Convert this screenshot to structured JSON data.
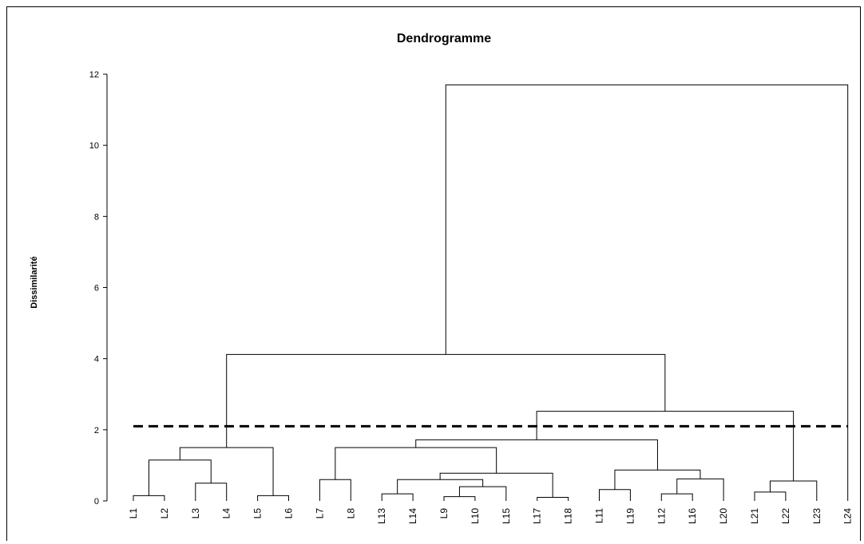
{
  "chart_data": {
    "type": "dendrogram",
    "title": "Dendrogramme",
    "ylabel": "Dissimilarité",
    "ylim": [
      0,
      12
    ],
    "yticks": [
      "0",
      "2",
      "4",
      "6",
      "8",
      "10",
      "12"
    ],
    "cut_line": 2.1,
    "leaves": [
      "L1",
      "L2",
      "L3",
      "L4",
      "L5",
      "L6",
      "L7",
      "L8",
      "L13",
      "L14",
      "L9",
      "L10",
      "L15",
      "L17",
      "L18",
      "L11",
      "L19",
      "L12",
      "L16",
      "L20",
      "L21",
      "L22",
      "L23",
      "L24"
    ],
    "merges": [
      {
        "a": "L1",
        "b": "L2",
        "height": 0.15,
        "id": "c1"
      },
      {
        "a": "L3",
        "b": "L4",
        "height": 0.5,
        "id": "c2"
      },
      {
        "a": "L5",
        "b": "L6",
        "height": 0.15,
        "id": "c3"
      },
      {
        "a": "c1",
        "b": "c2",
        "height": 1.15,
        "id": "c4"
      },
      {
        "a": "c4",
        "b": "c3",
        "height": 1.5,
        "id": "c5"
      },
      {
        "a": "L7",
        "b": "L8",
        "height": 0.6,
        "id": "c6"
      },
      {
        "a": "L13",
        "b": "L14",
        "height": 0.2,
        "id": "c7"
      },
      {
        "a": "L9",
        "b": "L10",
        "height": 0.12,
        "id": "c8"
      },
      {
        "a": "c8",
        "b": "L15",
        "height": 0.4,
        "id": "c9"
      },
      {
        "a": "c7",
        "b": "c9",
        "height": 0.6,
        "id": "c10"
      },
      {
        "a": "L17",
        "b": "L18",
        "height": 0.1,
        "id": "c11"
      },
      {
        "a": "c10",
        "b": "c11",
        "height": 0.78,
        "id": "c12"
      },
      {
        "a": "c6",
        "b": "c12",
        "height": 1.5,
        "id": "c13"
      },
      {
        "a": "L11",
        "b": "L19",
        "height": 0.32,
        "id": "c14"
      },
      {
        "a": "L12",
        "b": "L16",
        "height": 0.2,
        "id": "c15"
      },
      {
        "a": "c15",
        "b": "L20",
        "height": 0.62,
        "id": "c16"
      },
      {
        "a": "c14",
        "b": "c16",
        "height": 0.87,
        "id": "c17"
      },
      {
        "a": "c13",
        "b": "c17",
        "height": 1.72,
        "id": "c18"
      },
      {
        "a": "L21",
        "b": "L22",
        "height": 0.25,
        "id": "c19"
      },
      {
        "a": "c19",
        "b": "L23",
        "height": 0.56,
        "id": "c20"
      },
      {
        "a": "c18",
        "b": "c20",
        "height": 2.52,
        "id": "c21"
      },
      {
        "a": "c5",
        "b": "c21",
        "height": 4.12,
        "id": "c22"
      },
      {
        "a": "c22",
        "b": "L24",
        "height": 11.7,
        "id": "c23"
      }
    ]
  }
}
